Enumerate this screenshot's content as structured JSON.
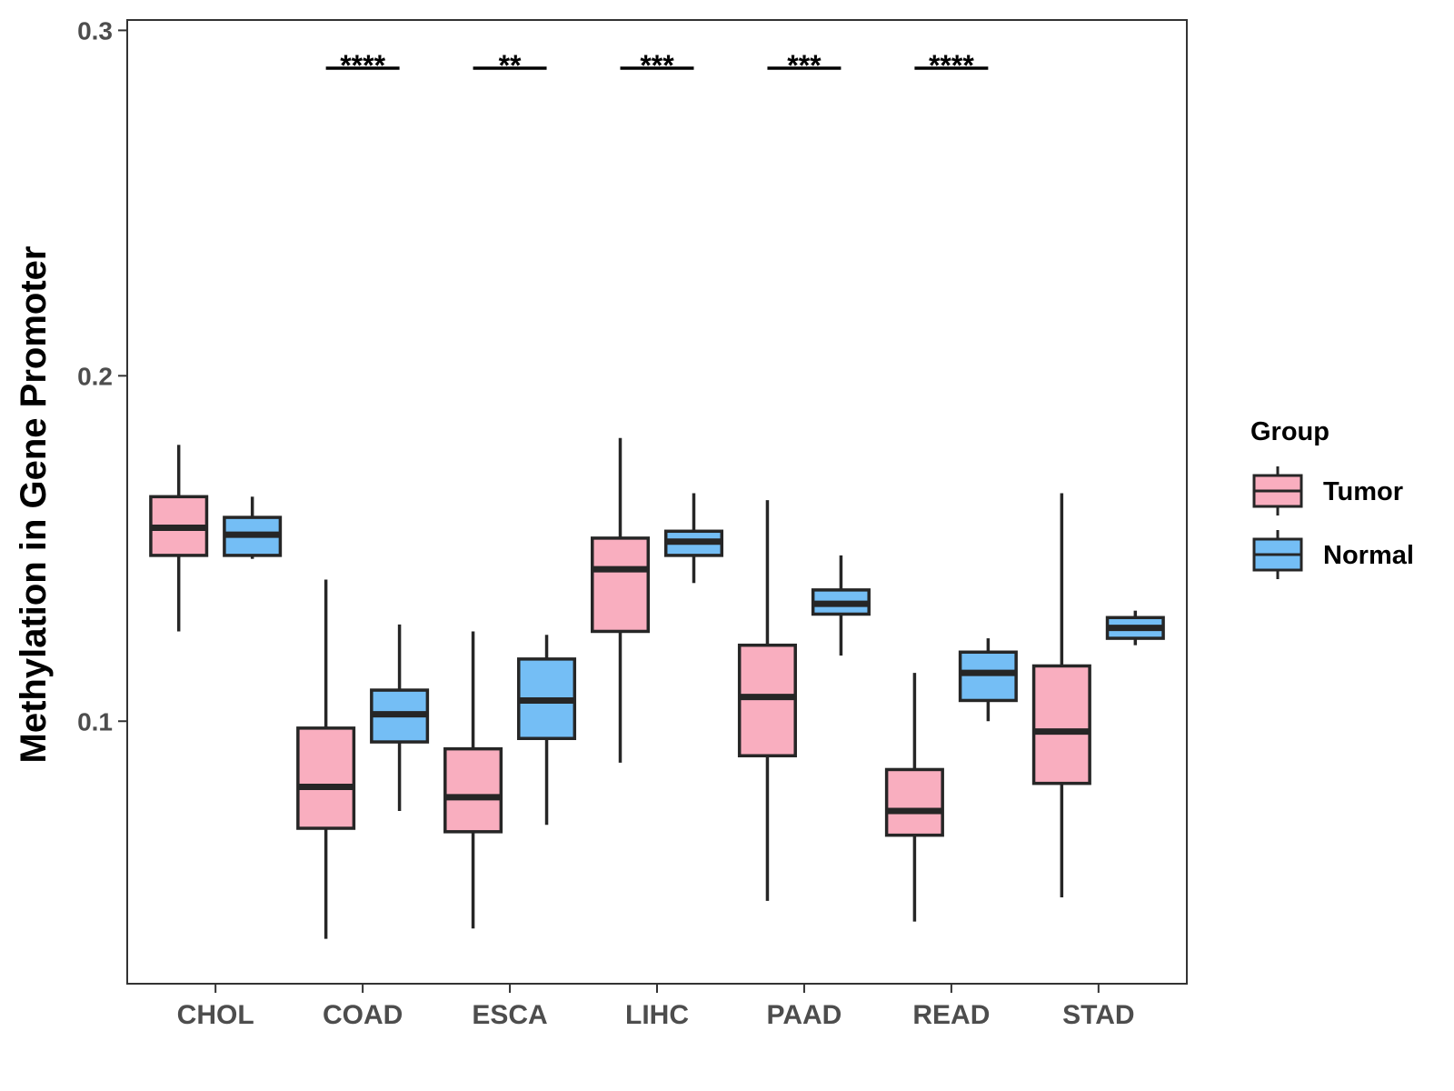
{
  "chart_data": {
    "type": "boxplot",
    "title": "",
    "xlabel": "",
    "ylabel": "Methylation in Gene Promoter",
    "ylim": [
      0.024,
      0.303
    ],
    "yticks": [
      0.1,
      0.2,
      0.3
    ],
    "ytick_labels": [
      "0.1",
      "0.2",
      "0.3"
    ],
    "categories": [
      "CHOL",
      "COAD",
      "ESCA",
      "LIHC",
      "PAAD",
      "READ",
      "STAD"
    ],
    "legend": {
      "title": "Group",
      "position": "right",
      "entries": [
        "Tumor",
        "Normal"
      ]
    },
    "series": [
      {
        "name": "Tumor",
        "color": "#F9AEBF",
        "boxes": [
          {
            "category": "CHOL",
            "whisker_low": 0.126,
            "q1": 0.148,
            "median": 0.156,
            "q3": 0.165,
            "whisker_high": 0.18
          },
          {
            "category": "COAD",
            "whisker_low": 0.037,
            "q1": 0.069,
            "median": 0.081,
            "q3": 0.098,
            "whisker_high": 0.141
          },
          {
            "category": "ESCA",
            "whisker_low": 0.04,
            "q1": 0.068,
            "median": 0.078,
            "q3": 0.092,
            "whisker_high": 0.126
          },
          {
            "category": "LIHC",
            "whisker_low": 0.088,
            "q1": 0.126,
            "median": 0.144,
            "q3": 0.153,
            "whisker_high": 0.182
          },
          {
            "category": "PAAD",
            "whisker_low": 0.048,
            "q1": 0.09,
            "median": 0.107,
            "q3": 0.122,
            "whisker_high": 0.164
          },
          {
            "category": "READ",
            "whisker_low": 0.042,
            "q1": 0.067,
            "median": 0.074,
            "q3": 0.086,
            "whisker_high": 0.114
          },
          {
            "category": "STAD",
            "whisker_low": 0.049,
            "q1": 0.082,
            "median": 0.097,
            "q3": 0.116,
            "whisker_high": 0.166
          }
        ]
      },
      {
        "name": "Normal",
        "color": "#74BEF5",
        "boxes": [
          {
            "category": "CHOL",
            "whisker_low": 0.147,
            "q1": 0.148,
            "median": 0.154,
            "q3": 0.159,
            "whisker_high": 0.165
          },
          {
            "category": "COAD",
            "whisker_low": 0.074,
            "q1": 0.094,
            "median": 0.102,
            "q3": 0.109,
            "whisker_high": 0.128
          },
          {
            "category": "ESCA",
            "whisker_low": 0.07,
            "q1": 0.095,
            "median": 0.106,
            "q3": 0.118,
            "whisker_high": 0.125
          },
          {
            "category": "LIHC",
            "whisker_low": 0.14,
            "q1": 0.148,
            "median": 0.152,
            "q3": 0.155,
            "whisker_high": 0.166
          },
          {
            "category": "PAAD",
            "whisker_low": 0.119,
            "q1": 0.131,
            "median": 0.134,
            "q3": 0.138,
            "whisker_high": 0.148
          },
          {
            "category": "READ",
            "whisker_low": 0.1,
            "q1": 0.106,
            "median": 0.114,
            "q3": 0.12,
            "whisker_high": 0.124
          },
          {
            "category": "STAD",
            "whisker_low": 0.122,
            "q1": 0.124,
            "median": 0.127,
            "q3": 0.13,
            "whisker_high": 0.132
          }
        ]
      }
    ],
    "significance": [
      {
        "category": "COAD",
        "label": "****"
      },
      {
        "category": "ESCA",
        "label": "**"
      },
      {
        "category": "LIHC",
        "label": "***"
      },
      {
        "category": "PAAD",
        "label": "***"
      },
      {
        "category": "READ",
        "label": "****"
      }
    ]
  }
}
